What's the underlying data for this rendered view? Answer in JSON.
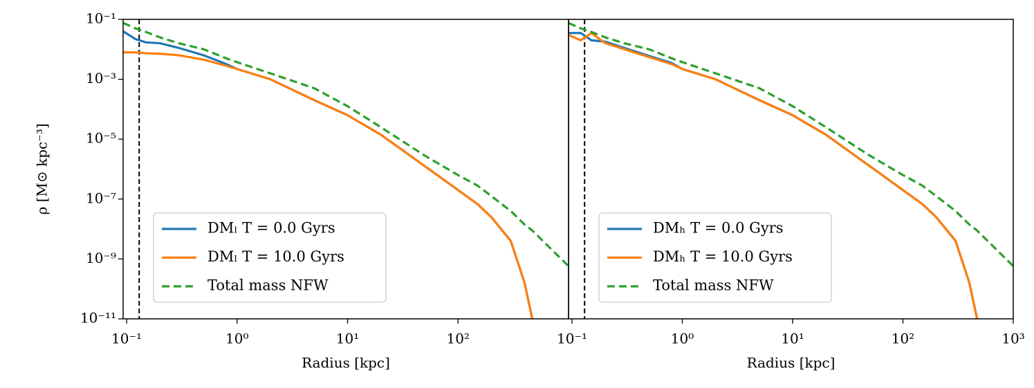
{
  "chart_data": [
    {
      "type": "line",
      "ylabel": "ρ [M⊙ kpc⁻³]",
      "xlabel": "Radius [kpc]",
      "xscale": "log",
      "yscale": "log",
      "xlim": [
        0.093,
        1000
      ],
      "ylim": [
        1e-11,
        0.1
      ],
      "xticks": [
        {
          "value": 0.1,
          "label": "10⁻¹"
        },
        {
          "value": 1,
          "label": "10⁰"
        },
        {
          "value": 10,
          "label": "10¹"
        },
        {
          "value": 100,
          "label": "10²"
        }
      ],
      "yticks": [
        {
          "value": 1e-11,
          "label": "10⁻¹¹"
        },
        {
          "value": 1e-09,
          "label": "10⁻⁹"
        },
        {
          "value": 1e-07,
          "label": "10⁻⁷"
        },
        {
          "value": 1e-05,
          "label": "10⁻⁵"
        },
        {
          "value": 0.001,
          "label": "10⁻³"
        },
        {
          "value": 0.1,
          "label": "10⁻¹"
        }
      ],
      "vline": 0.13,
      "legend": "lower left",
      "x": [
        0.093,
        0.12,
        0.15,
        0.2,
        0.3,
        0.5,
        0.8,
        1,
        2,
        5,
        10,
        20,
        50,
        100,
        150,
        200,
        300,
        400,
        470,
        1000
      ],
      "series": [
        {
          "name": "DMₗ T = 0.0 Gyrs",
          "color": "#1f77b4",
          "values": [
            0.04,
            0.022,
            0.017,
            0.016,
            0.011,
            0.0063,
            0.0032,
            0.0022,
            0.001,
            0.0002,
            6.3e-05,
            1.41e-05,
            1.26e-06,
            2e-07,
            6.8e-08,
            2.5e-08,
            4e-09,
            1.6e-10,
            1e-11,
            null
          ]
        },
        {
          "name": "DMₗ T = 10.0 Gyrs",
          "color": "#ff7f0e",
          "values": [
            0.0079,
            0.0079,
            0.0074,
            0.0071,
            0.0063,
            0.0045,
            0.0028,
            0.0022,
            0.001,
            0.0002,
            6.3e-05,
            1.41e-05,
            1.26e-06,
            2e-07,
            6.8e-08,
            2.5e-08,
            4e-09,
            1.6e-10,
            1e-11,
            null
          ]
        },
        {
          "name": "Total mass NFW",
          "color": "#2ca02c",
          "dashed": true,
          "values": [
            0.0759,
            0.0501,
            0.038,
            0.0251,
            0.0158,
            0.01,
            0.005,
            0.00372,
            0.00158,
            0.0005,
            0.000126,
            2.51e-05,
            2.82e-06,
            6.31e-07,
            2.82e-07,
            1.26e-07,
            3.98e-08,
            1.41e-08,
            8.9e-09,
            5.75e-10
          ]
        }
      ]
    },
    {
      "type": "line",
      "xlabel": "Radius [kpc]",
      "xscale": "log",
      "yscale": "log",
      "xlim": [
        0.093,
        1000
      ],
      "ylim": [
        1e-11,
        0.1
      ],
      "xticks": [
        {
          "value": 0.1,
          "label": "10⁻¹"
        },
        {
          "value": 1,
          "label": "10⁰"
        },
        {
          "value": 10,
          "label": "10¹"
        },
        {
          "value": 100,
          "label": "10²"
        },
        {
          "value": 1000,
          "label": "10³"
        }
      ],
      "vline": 0.13,
      "legend": "lower left",
      "x": [
        0.093,
        0.12,
        0.15,
        0.2,
        0.3,
        0.5,
        0.8,
        1,
        2,
        5,
        10,
        20,
        50,
        100,
        150,
        200,
        300,
        400,
        470,
        1000
      ],
      "series": [
        {
          "name": "DMₕ T = 0.0 Gyrs",
          "color": "#1f77b4",
          "values": [
            0.035,
            0.035,
            0.02,
            0.018,
            0.011,
            0.006,
            0.0035,
            0.0022,
            0.001,
            0.0002,
            6.3e-05,
            1.41e-05,
            1.26e-06,
            2e-07,
            6.8e-08,
            2.5e-08,
            4e-09,
            1.6e-10,
            1e-11,
            null
          ]
        },
        {
          "name": "DMₕ T = 10.0 Gyrs",
          "color": "#ff7f0e",
          "values": [
            0.03,
            0.02,
            0.035,
            0.016,
            0.01,
            0.0055,
            0.0032,
            0.0022,
            0.001,
            0.0002,
            6.3e-05,
            1.41e-05,
            1.26e-06,
            2e-07,
            6.8e-08,
            2.5e-08,
            4e-09,
            1.6e-10,
            1e-11,
            null
          ]
        },
        {
          "name": "Total mass NFW",
          "color": "#2ca02c",
          "dashed": true,
          "values": [
            0.0759,
            0.0501,
            0.038,
            0.0251,
            0.0158,
            0.01,
            0.005,
            0.00372,
            0.00158,
            0.0005,
            0.000126,
            2.51e-05,
            2.82e-06,
            6.31e-07,
            2.82e-07,
            1.26e-07,
            3.98e-08,
            1.41e-08,
            8.9e-09,
            5.75e-10
          ]
        }
      ]
    }
  ]
}
